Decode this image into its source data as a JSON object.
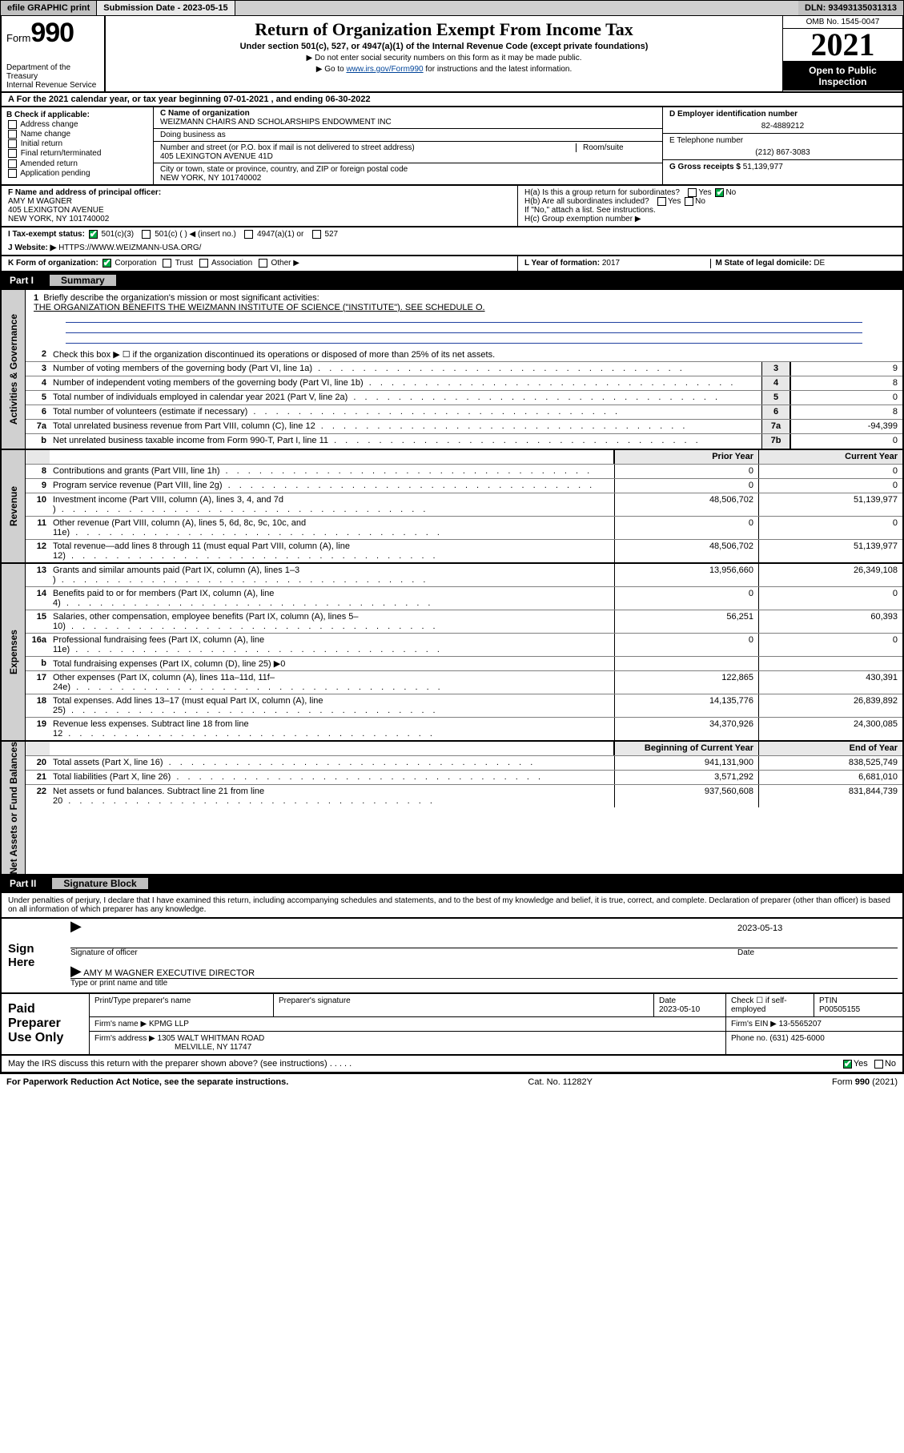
{
  "top_bar": {
    "efile": "efile GRAPHIC print",
    "submission_label": "Submission Date - 2023-05-15",
    "dln": "DLN: 93493135031313"
  },
  "header": {
    "form_prefix": "Form",
    "form_num": "990",
    "dept": "Department of the Treasury\nInternal Revenue Service",
    "title": "Return of Organization Exempt From Income Tax",
    "subtitle": "Under section 501(c), 527, or 4947(a)(1) of the Internal Revenue Code (except private foundations)",
    "note1": "▶ Do not enter social security numbers on this form as it may be made public.",
    "note2_prefix": "▶ Go to ",
    "note2_link": "www.irs.gov/Form990",
    "note2_suffix": " for instructions and the latest information.",
    "omb": "OMB No. 1545-0047",
    "year": "2021",
    "open_public": "Open to Public Inspection"
  },
  "tax_year_line": "For the 2021 calendar year, or tax year beginning 07-01-2021   , and ending 06-30-2022",
  "section_b": {
    "heading": "B Check if applicable:",
    "items": [
      "Address change",
      "Name change",
      "Initial return",
      "Final return/terminated",
      "Amended return",
      "Application pending"
    ]
  },
  "section_c": {
    "name_label": "C Name of organization",
    "name": "WEIZMANN CHAIRS AND SCHOLARSHIPS ENDOWMENT INC",
    "dba_label": "Doing business as",
    "addr_label": "Number and street (or P.O. box if mail is not delivered to street address)",
    "room_label": "Room/suite",
    "addr": "405 LEXINGTON AVENUE 41D",
    "city_label": "City or town, state or province, country, and ZIP or foreign postal code",
    "city": "NEW YORK, NY  101740002"
  },
  "section_d": {
    "ein_label": "D Employer identification number",
    "ein": "82-4889212",
    "phone_label": "E Telephone number",
    "phone": "(212) 867-3083",
    "gross_label": "G Gross receipts $ ",
    "gross": "51,139,977"
  },
  "section_f": {
    "label": "F  Name and address of principal officer:",
    "name": "AMY M WAGNER",
    "addr1": "405 LEXINGTON AVENUE",
    "addr2": "NEW YORK, NY  101740002"
  },
  "section_h": {
    "ha": "H(a)  Is this a group return for subordinates?",
    "hb": "H(b)  Are all subordinates included?",
    "hb_note": "If \"No,\" attach a list. See instructions.",
    "hc": "H(c)  Group exemption number ▶",
    "yes": "Yes",
    "no": "No"
  },
  "tax_status": {
    "label": "I    Tax-exempt status:",
    "opts": [
      "501(c)(3)",
      "501(c) (   ) ◀ (insert no.)",
      "4947(a)(1) or",
      "527"
    ]
  },
  "website": {
    "label": "J    Website: ▶  ",
    "url": "HTTPS://WWW.WEIZMANN-USA.ORG/"
  },
  "section_k": {
    "label": "K Form of organization:",
    "opts": [
      "Corporation",
      "Trust",
      "Association",
      "Other ▶"
    ],
    "l_label": "L Year of formation: ",
    "l_val": "2017",
    "m_label": "M State of legal domicile: ",
    "m_val": "DE"
  },
  "part1": {
    "num": "Part I",
    "title": "Summary"
  },
  "summary": {
    "line1": "Briefly describe the organization's mission or most significant activities:",
    "mission": "THE ORGANIZATION BENEFITS THE WEIZMANN INSTITUTE OF SCIENCE (\"INSTITUTE\"). SEE SCHEDULE O.",
    "line2": "Check this box ▶ ☐  if the organization discontinued its operations or disposed of more than 25% of its net assets."
  },
  "governance_rows": [
    {
      "n": "3",
      "d": "Number of voting members of the governing body (Part VI, line 1a)",
      "cell": "3",
      "v": "9"
    },
    {
      "n": "4",
      "d": "Number of independent voting members of the governing body (Part VI, line 1b)",
      "cell": "4",
      "v": "8"
    },
    {
      "n": "5",
      "d": "Total number of individuals employed in calendar year 2021 (Part V, line 2a)",
      "cell": "5",
      "v": "0"
    },
    {
      "n": "6",
      "d": "Total number of volunteers (estimate if necessary)",
      "cell": "6",
      "v": "8"
    },
    {
      "n": "7a",
      "d": "Total unrelated business revenue from Part VIII, column (C), line 12",
      "cell": "7a",
      "v": "-94,399"
    },
    {
      "n": "b",
      "d": "Net unrelated business taxable income from Form 990-T, Part I, line 11",
      "cell": "7b",
      "v": "0"
    }
  ],
  "rev_header": {
    "prior": "Prior Year",
    "current": "Current Year"
  },
  "revenue_rows": [
    {
      "n": "8",
      "d": "Contributions and grants (Part VIII, line 1h)",
      "p": "0",
      "c": "0"
    },
    {
      "n": "9",
      "d": "Program service revenue (Part VIII, line 2g)",
      "p": "0",
      "c": "0"
    },
    {
      "n": "10",
      "d": "Investment income (Part VIII, column (A), lines 3, 4, and 7d )",
      "p": "48,506,702",
      "c": "51,139,977"
    },
    {
      "n": "11",
      "d": "Other revenue (Part VIII, column (A), lines 5, 6d, 8c, 9c, 10c, and 11e)",
      "p": "0",
      "c": "0"
    },
    {
      "n": "12",
      "d": "Total revenue—add lines 8 through 11 (must equal Part VIII, column (A), line 12)",
      "p": "48,506,702",
      "c": "51,139,977"
    }
  ],
  "expense_rows": [
    {
      "n": "13",
      "d": "Grants and similar amounts paid (Part IX, column (A), lines 1–3 )",
      "p": "13,956,660",
      "c": "26,349,108"
    },
    {
      "n": "14",
      "d": "Benefits paid to or for members (Part IX, column (A), line 4)",
      "p": "0",
      "c": "0"
    },
    {
      "n": "15",
      "d": "Salaries, other compensation, employee benefits (Part IX, column (A), lines 5–10)",
      "p": "56,251",
      "c": "60,393"
    },
    {
      "n": "16a",
      "d": "Professional fundraising fees (Part IX, column (A), line 11e)",
      "p": "0",
      "c": "0"
    },
    {
      "n": "b",
      "d": "Total fundraising expenses (Part IX, column (D), line 25) ▶0",
      "p": "",
      "c": "",
      "gray": true
    },
    {
      "n": "17",
      "d": "Other expenses (Part IX, column (A), lines 11a–11d, 11f–24e)",
      "p": "122,865",
      "c": "430,391"
    },
    {
      "n": "18",
      "d": "Total expenses. Add lines 13–17 (must equal Part IX, column (A), line 25)",
      "p": "14,135,776",
      "c": "26,839,892"
    },
    {
      "n": "19",
      "d": "Revenue less expenses. Subtract line 18 from line 12",
      "p": "34,370,926",
      "c": "24,300,085"
    }
  ],
  "net_header": {
    "begin": "Beginning of Current Year",
    "end": "End of Year"
  },
  "net_rows": [
    {
      "n": "20",
      "d": "Total assets (Part X, line 16)",
      "p": "941,131,900",
      "c": "838,525,749"
    },
    {
      "n": "21",
      "d": "Total liabilities (Part X, line 26)",
      "p": "3,571,292",
      "c": "6,681,010"
    },
    {
      "n": "22",
      "d": "Net assets or fund balances. Subtract line 21 from line 20",
      "p": "937,560,608",
      "c": "831,844,739"
    }
  ],
  "part2": {
    "num": "Part II",
    "title": "Signature Block"
  },
  "penalties": "Under penalties of perjury, I declare that I have examined this return, including accompanying schedules and statements, and to the best of my knowledge and belief, it is true, correct, and complete. Declaration of preparer (other than officer) is based on all information of which preparer has any knowledge.",
  "sign": {
    "here": "Sign Here",
    "sig_label": "Signature of officer",
    "date_label": "Date",
    "date": "2023-05-13",
    "name": "AMY M WAGNER  EXECUTIVE DIRECTOR",
    "name_label": "Type or print name and title"
  },
  "preparer": {
    "label": "Paid Preparer Use Only",
    "row1": {
      "c1": "Print/Type preparer's name",
      "c2": "Preparer's signature",
      "c3": "Date",
      "c3v": "2023-05-10",
      "c4": "Check ☐ if self-employed",
      "c5": "PTIN",
      "c5v": "P00505155"
    },
    "row2": {
      "c1": "Firm's name    ▶ KPMG LLP",
      "c2": "Firm's EIN ▶ 13-5565207"
    },
    "row3": {
      "c1": "Firm's address ▶ 1305 WALT WHITMAN ROAD",
      "c2": "Phone no. (631) 425-6000"
    },
    "row3b": "MELVILLE, NY  11747"
  },
  "discuss": {
    "q": "May the IRS discuss this return with the preparer shown above? (see instructions)",
    "yes": "Yes",
    "no": "No"
  },
  "footer": {
    "left": "For Paperwork Reduction Act Notice, see the separate instructions.",
    "mid": "Cat. No. 11282Y",
    "right": "Form 990 (2021)"
  },
  "vert_labels": {
    "gov": "Activities & Governance",
    "rev": "Revenue",
    "exp": "Expenses",
    "net": "Net Assets or Fund Balances"
  }
}
